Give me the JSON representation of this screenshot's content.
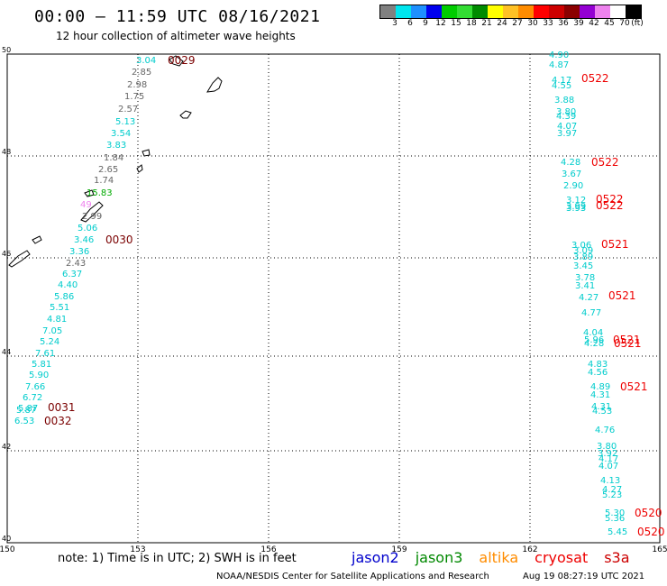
{
  "header": {
    "title": "00:00 – 11:59 UTC 08/16/2021",
    "subtitle": "12 hour collection of altimeter wave heights"
  },
  "legend": {
    "colors": [
      "#808080",
      "#00e5ee",
      "#1e90ff",
      "#0000ee",
      "#00cd00",
      "#33dd33",
      "#008b00",
      "#ffff00",
      "#ffc125",
      "#ff8c00",
      "#ff0000",
      "#cd0000",
      "#8b0000",
      "#9400d3",
      "#ee82ee",
      "#ffffff",
      "#000000"
    ],
    "labels": [
      "3",
      "6",
      "9",
      "12",
      "15",
      "18",
      "21",
      "24",
      "27",
      "30",
      "33",
      "36",
      "39",
      "42",
      "45",
      "70",
      "(ft)"
    ]
  },
  "map": {
    "x_ticks": [
      "150",
      "153",
      "156",
      "159",
      "162",
      "165"
    ],
    "y_ticks": [
      "50",
      "48",
      "46",
      "44",
      "42",
      "40"
    ],
    "colors": {
      "cyan": "#00cccc",
      "gray": "#666666",
      "green": "#00aa00",
      "pink": "#ee82ee",
      "time_dark": "#7a0000",
      "time_red": "#ee0000"
    },
    "left_track": [
      {
        "t": "3.04",
        "c": "cyan"
      },
      {
        "t": "2.85",
        "c": "gray"
      },
      {
        "t": "2.98",
        "c": "gray"
      },
      {
        "t": "1.75",
        "c": "gray"
      },
      {
        "t": "2.57",
        "c": "gray"
      },
      {
        "t": "5.13",
        "c": "cyan"
      },
      {
        "t": "3.54",
        "c": "cyan"
      },
      {
        "t": "3.83",
        "c": "cyan"
      },
      {
        "t": "1.84",
        "c": "gray"
      },
      {
        "t": "2.65",
        "c": "gray"
      },
      {
        "t": "1.74",
        "c": "gray"
      },
      {
        "t": "15.83",
        "c": "green"
      },
      {
        "t": "49",
        "c": "pink"
      },
      {
        "t": "2.99",
        "c": "gray"
      },
      {
        "t": "5.06",
        "c": "cyan"
      },
      {
        "t": "3.46",
        "c": "cyan"
      },
      {
        "t": "3.36",
        "c": "cyan"
      },
      {
        "t": "2.43",
        "c": "gray"
      },
      {
        "t": "6.37",
        "c": "cyan"
      },
      {
        "t": "4.40",
        "c": "cyan"
      },
      {
        "t": "5.86",
        "c": "cyan"
      },
      {
        "t": "5.51",
        "c": "cyan"
      },
      {
        "t": "4.81",
        "c": "cyan"
      },
      {
        "t": "7.05",
        "c": "cyan"
      },
      {
        "t": "5.24",
        "c": "cyan"
      },
      {
        "t": "7.61",
        "c": "cyan"
      },
      {
        "t": "5.81",
        "c": "cyan"
      },
      {
        "t": "5.90",
        "c": "cyan"
      },
      {
        "t": "7.66",
        "c": "cyan"
      },
      {
        "t": "6.72",
        "c": "cyan"
      },
      {
        "t": "5.87",
        "c": "cyan"
      },
      {
        "t": "5.87",
        "c": "cyan"
      },
      {
        "t": "6.53",
        "c": "cyan"
      }
    ],
    "left_times": [
      "0029",
      "0030",
      "0031",
      "0032"
    ],
    "right_track": [
      "4.90",
      "4.87",
      "4.17",
      "4.55",
      "3.88",
      "3.80",
      "4.39",
      "4.07",
      "3.97",
      "4.28",
      "3.67",
      "2.90",
      "3.12",
      "3.99",
      "3.93",
      "3.06",
      "3.09",
      "3.89",
      "3.45",
      "3.78",
      "3.41",
      "4.27",
      "4.77",
      "4.04",
      "5.96",
      "4.28",
      "4.83",
      "4.56",
      "4.89",
      "4.31",
      "4.31",
      "4.53",
      "4.76",
      "3.80",
      "3.92",
      "4.17",
      "4.07",
      "4.13",
      "4.27",
      "5.23",
      "5.30",
      "5.36",
      "5.45"
    ],
    "right_times": [
      "0522",
      "0522",
      "0522",
      "0522",
      "0521",
      "0521",
      "0521",
      "0521",
      "0521",
      "0520",
      "0520"
    ]
  },
  "footer": {
    "note": "note: 1) Time is in UTC; 2) SWH is in feet",
    "satellites": [
      {
        "name": "jason2",
        "color": "#0000cc"
      },
      {
        "name": "jason3",
        "color": "#008800"
      },
      {
        "name": "altika",
        "color": "#ff8c00"
      },
      {
        "name": "cryosat",
        "color": "#ee0000"
      },
      {
        "name": "s3a",
        "color": "#cc0000"
      }
    ],
    "credit": "NOAA/NESDIS Center for Satellite Applications and Research",
    "timestamp": "Aug 19 08:27:19 UTC 2021"
  }
}
